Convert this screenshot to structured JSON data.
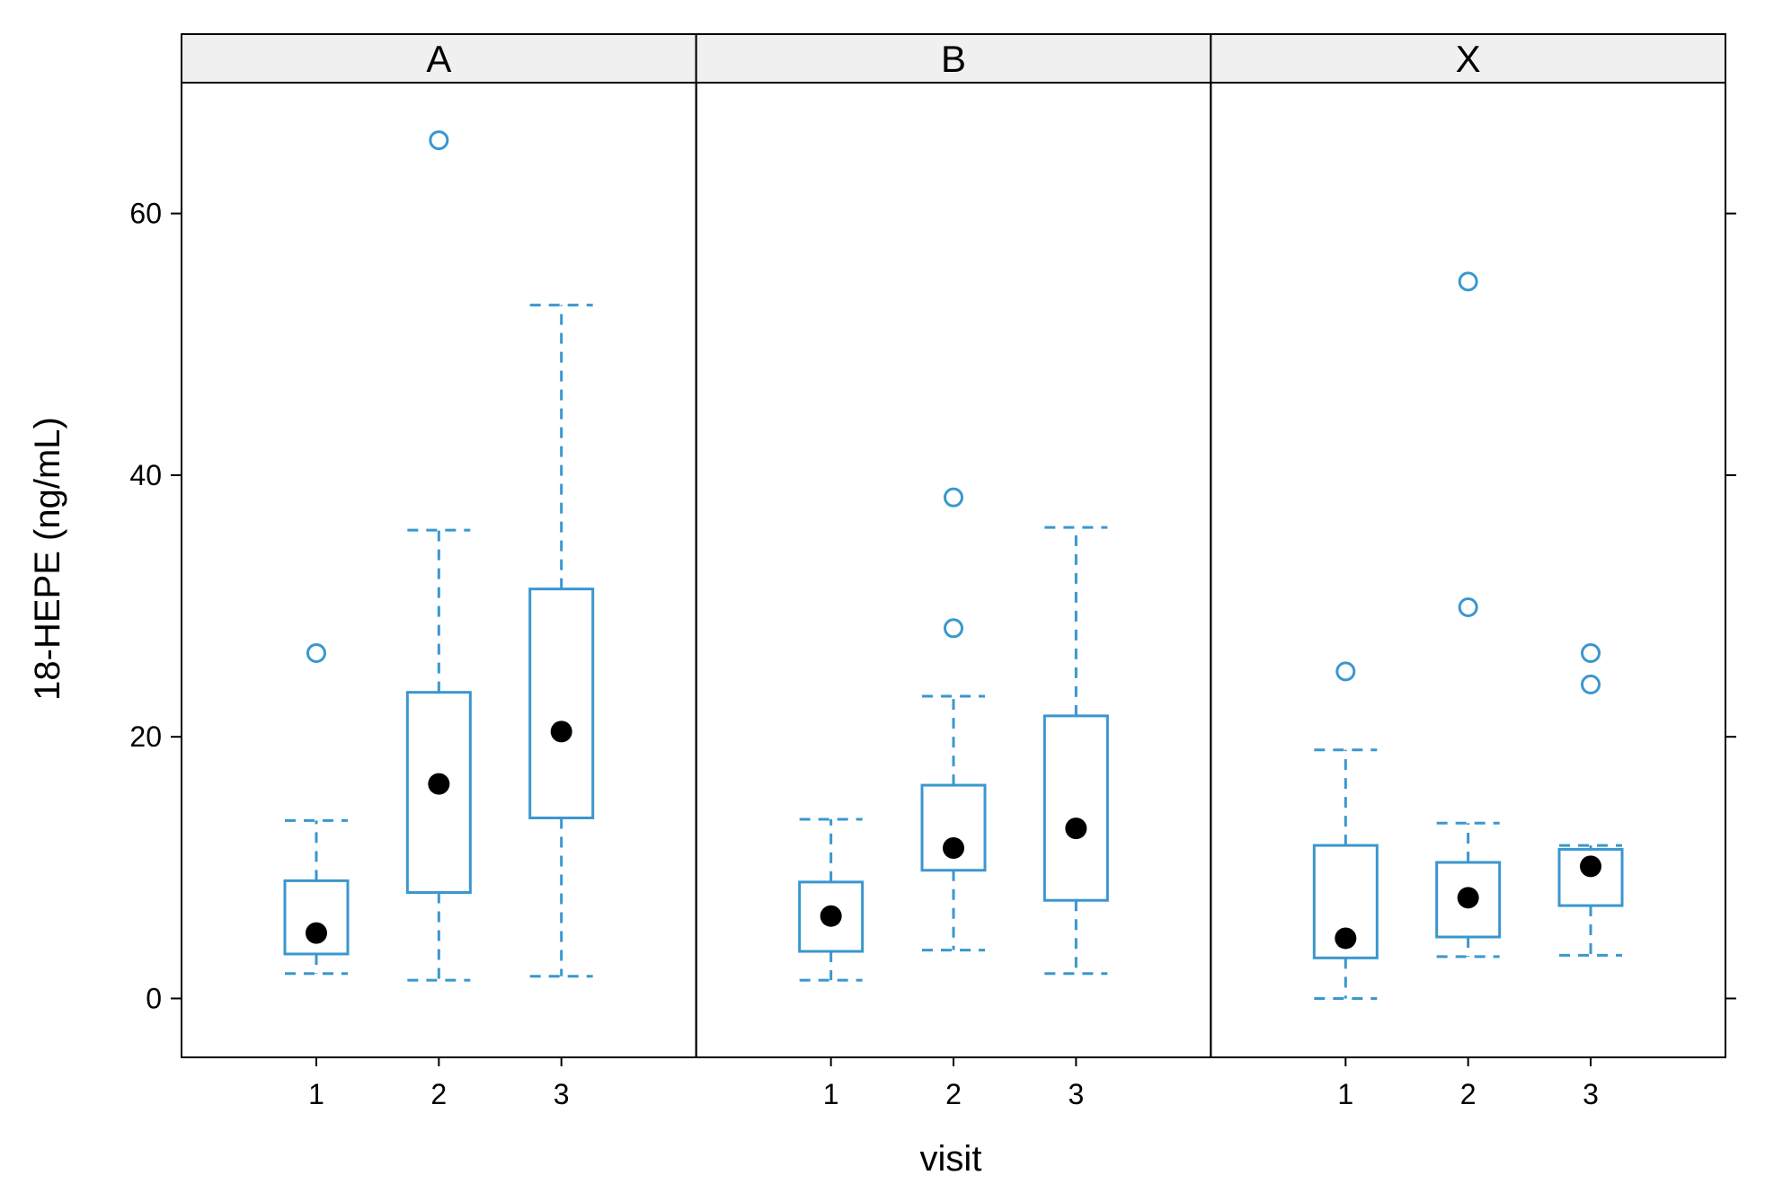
{
  "chart_data": {
    "type": "boxplot",
    "xlabel": "visit",
    "ylabel": "18-HEPE (ng/mL)",
    "yticks": [
      0,
      20,
      40,
      60
    ],
    "ylim": [
      -4.5,
      70
    ],
    "colors": {
      "box": "#3a97cf",
      "median": "#000000",
      "strip_bg": "#f0f0f0",
      "frame": "#000000"
    },
    "panels": [
      {
        "label": "A",
        "groups": [
          {
            "visit": "1",
            "whisker_low": 1.9,
            "q1": 3.4,
            "median": 5.0,
            "q3": 9.0,
            "whisker_high": 13.6,
            "outliers": [
              26.4
            ]
          },
          {
            "visit": "2",
            "whisker_low": 1.4,
            "q1": 8.1,
            "median": 16.4,
            "q3": 23.4,
            "whisker_high": 35.8,
            "outliers": [
              65.6
            ]
          },
          {
            "visit": "3",
            "whisker_low": 1.7,
            "q1": 13.8,
            "median": 20.4,
            "q3": 31.3,
            "whisker_high": 53.0,
            "outliers": []
          }
        ]
      },
      {
        "label": "B",
        "groups": [
          {
            "visit": "1",
            "whisker_low": 1.4,
            "q1": 3.6,
            "median": 6.3,
            "q3": 8.9,
            "whisker_high": 13.7,
            "outliers": []
          },
          {
            "visit": "2",
            "whisker_low": 3.7,
            "q1": 9.8,
            "median": 11.5,
            "q3": 16.3,
            "whisker_high": 23.1,
            "outliers": [
              28.3,
              38.3
            ]
          },
          {
            "visit": "3",
            "whisker_low": 1.9,
            "q1": 7.5,
            "median": 13.0,
            "q3": 21.6,
            "whisker_high": 36.0,
            "outliers": []
          }
        ]
      },
      {
        "label": "X",
        "groups": [
          {
            "visit": "1",
            "whisker_low": 0.0,
            "q1": 3.1,
            "median": 4.6,
            "q3": 11.7,
            "whisker_high": 19.0,
            "outliers": [
              25.0
            ]
          },
          {
            "visit": "2",
            "whisker_low": 3.2,
            "q1": 4.7,
            "median": 7.7,
            "q3": 10.4,
            "whisker_high": 13.4,
            "outliers": [
              29.9,
              54.8
            ]
          },
          {
            "visit": "3",
            "whisker_low": 3.3,
            "q1": 7.1,
            "median": 10.1,
            "q3": 11.4,
            "whisker_high": 11.7,
            "outliers": [
              24.0,
              26.4
            ]
          }
        ]
      }
    ]
  }
}
